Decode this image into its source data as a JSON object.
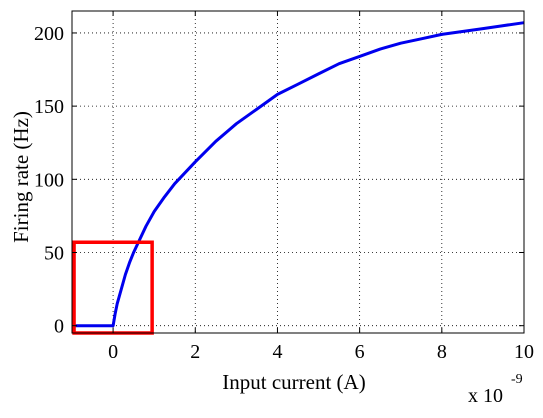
{
  "chart_data": {
    "type": "line",
    "title": "",
    "xlabel": "Input current (A)",
    "ylabel": "Firing rate (Hz)",
    "x_multiplier_label": "x 10",
    "x_multiplier_exponent": "-9",
    "xlim": [
      -1,
      10
    ],
    "ylim": [
      -5,
      215
    ],
    "x_ticks": [
      0,
      2,
      4,
      6,
      8,
      10
    ],
    "x_tick_labels": [
      "0",
      "2",
      "4",
      "6",
      "8",
      "10"
    ],
    "y_ticks": [
      0,
      50,
      100,
      150,
      200
    ],
    "y_tick_labels": [
      "0",
      "50",
      "100",
      "150",
      "200"
    ],
    "grid": true,
    "grid_style": "dotted",
    "legend": "none",
    "series": [
      {
        "color": "#0000ee",
        "x": [
          -1,
          0,
          0.05,
          0.1,
          0.2,
          0.3,
          0.4,
          0.5,
          0.6,
          0.8,
          1.0,
          1.25,
          1.5,
          2.0,
          2.5,
          3.0,
          3.5,
          4.0,
          4.5,
          5.0,
          5.5,
          6.0,
          6.5,
          7.0,
          7.5,
          8.0,
          8.5,
          9.0,
          9.5,
          10.0
        ],
        "y": [
          0,
          0,
          8,
          15,
          25,
          35,
          43,
          50,
          56,
          68,
          78,
          88,
          97,
          112,
          126,
          138,
          148,
          158,
          165,
          172,
          179,
          184,
          189,
          193,
          196,
          199,
          201,
          203,
          205,
          207
        ]
      }
    ],
    "annotations": [
      {
        "type": "rectangle",
        "color": "#ff0000",
        "x_range": [
          -0.95,
          0.95
        ],
        "y_range": [
          -5,
          57
        ]
      }
    ]
  }
}
